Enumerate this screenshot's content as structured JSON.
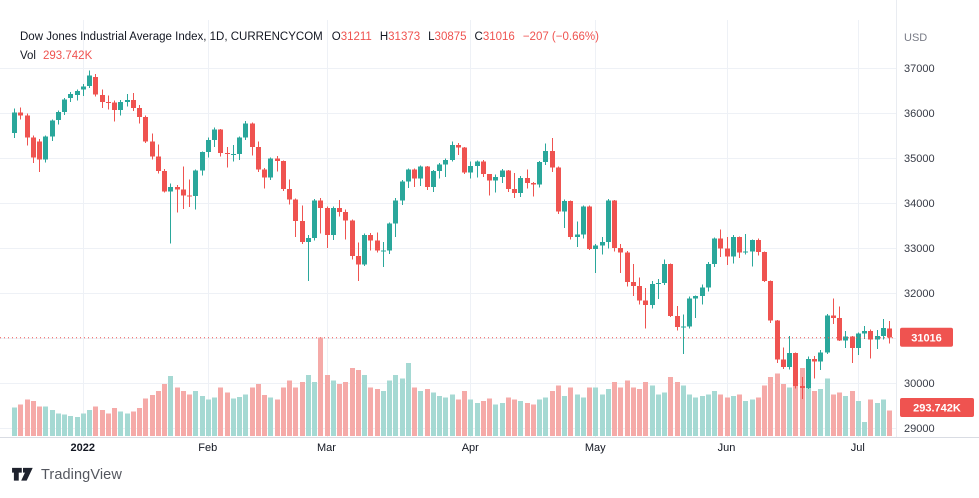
{
  "header": {
    "title": "Dow Jones Industrial Average Index, 1D, CURRENCYCOM",
    "ohlc": [
      {
        "label": "O",
        "value": "31211"
      },
      {
        "label": "H",
        "value": "31373"
      },
      {
        "label": "L",
        "value": "30875"
      },
      {
        "label": "C",
        "value": "31016"
      }
    ],
    "change": "−207 (−0.66%)",
    "vol_label": "Vol",
    "vol_value": "293.742K"
  },
  "axes": {
    "currency_label": "USD",
    "price_ticks_labeled": [
      37000,
      36000,
      35000,
      34000,
      33000,
      32000,
      30000,
      29000
    ],
    "price_gridlines": [
      37000,
      36000,
      35000,
      34000,
      33000,
      32000,
      31000,
      30000,
      29000
    ],
    "time_ticks": [
      {
        "label": "2022",
        "index": 11,
        "bold": true
      },
      {
        "label": "Feb",
        "index": 31,
        "bold": false
      },
      {
        "label": "Mar",
        "index": 50,
        "bold": false
      },
      {
        "label": "Apr",
        "index": 73,
        "bold": false
      },
      {
        "label": "May",
        "index": 93,
        "bold": false
      },
      {
        "label": "Jun",
        "index": 114,
        "bold": false
      },
      {
        "label": "Jul",
        "index": 135,
        "bold": false
      }
    ]
  },
  "price_line": {
    "value": 31016,
    "badge_label": "31016"
  },
  "volume_badge_label": "293.742K",
  "watermark": {
    "brand": "TradingView"
  },
  "colors": {
    "up": "#2aa79b",
    "down": "#ef5350",
    "vol_up": "#a5d9d3",
    "vol_down": "#f5aaa8",
    "grid": "#eef1f6",
    "axis_text": "#363a45",
    "muted_text": "#787b86",
    "title_text": "#131722",
    "badge_bg": "#ef5350",
    "badge_text": "#ffffff",
    "axis_line": "#d9dce3",
    "pane_border": "#e9ecf1"
  },
  "chart_data": {
    "type": "candlestick+volume",
    "title": "Dow Jones Industrial Average Index",
    "interval": "1D",
    "exchange": "CURRENCYCOM",
    "currency": "USD",
    "legend_last": {
      "open": 31211,
      "high": 31373,
      "low": 30875,
      "close": 31016,
      "change": -207,
      "change_pct": -0.66,
      "volume": "293.742K"
    },
    "price_axis_range_visible": [
      28800,
      38500
    ],
    "grid": true,
    "candle_format": [
      "open",
      "high",
      "low",
      "close",
      "volume_K"
    ],
    "candles": [
      [
        35560,
        36100,
        35450,
        36010,
        330
      ],
      [
        36010,
        36120,
        35860,
        35950,
        360
      ],
      [
        35950,
        35990,
        35280,
        35460,
        420
      ],
      [
        35460,
        35500,
        34890,
        35010,
        400
      ],
      [
        35370,
        35420,
        34690,
        34970,
        340
      ],
      [
        34970,
        35500,
        34900,
        35480,
        340
      ],
      [
        35480,
        35860,
        35380,
        35830,
        300
      ],
      [
        35840,
        36060,
        35740,
        36020,
        260
      ],
      [
        36020,
        36330,
        35960,
        36300,
        250
      ],
      [
        36330,
        36470,
        36240,
        36420,
        230
      ],
      [
        36400,
        36520,
        36280,
        36490,
        220
      ],
      [
        36520,
        36650,
        36380,
        36590,
        260
      ],
      [
        36600,
        36950,
        36560,
        36830,
        300
      ],
      [
        36800,
        36870,
        36370,
        36410,
        340
      ],
      [
        36400,
        36520,
        36110,
        36240,
        300
      ],
      [
        36240,
        36390,
        36080,
        36230,
        260
      ],
      [
        36230,
        36280,
        35810,
        36070,
        320
      ],
      [
        36070,
        36290,
        35940,
        36250,
        280
      ],
      [
        36250,
        36420,
        36140,
        36290,
        260
      ],
      [
        36290,
        36440,
        36040,
        36110,
        280
      ],
      [
        36110,
        36180,
        35770,
        35910,
        320
      ],
      [
        35910,
        35940,
        35330,
        35370,
        430
      ],
      [
        35370,
        35550,
        34970,
        35030,
        470
      ],
      [
        35030,
        35300,
        34660,
        34710,
        520
      ],
      [
        34710,
        34760,
        34230,
        34260,
        600
      ],
      [
        34260,
        34430,
        33100,
        34360,
        690
      ],
      [
        34360,
        34400,
        33790,
        34300,
        560
      ],
      [
        34300,
        34810,
        33870,
        34170,
        520
      ],
      [
        34170,
        34520,
        33910,
        34160,
        480
      ],
      [
        34160,
        34740,
        33860,
        34720,
        520
      ],
      [
        34720,
        35150,
        34610,
        35130,
        460
      ],
      [
        35130,
        35460,
        35010,
        35400,
        420
      ],
      [
        35400,
        35680,
        35240,
        35630,
        440
      ],
      [
        35630,
        35650,
        35030,
        35110,
        560
      ],
      [
        35110,
        35250,
        34790,
        35090,
        500
      ],
      [
        35090,
        35290,
        34920,
        35090,
        430
      ],
      [
        35090,
        35480,
        34960,
        35460,
        450
      ],
      [
        35460,
        35820,
        35400,
        35770,
        480
      ],
      [
        35770,
        35790,
        35060,
        35240,
        560
      ],
      [
        35240,
        35370,
        34690,
        34740,
        600
      ],
      [
        34740,
        34780,
        34320,
        34570,
        470
      ],
      [
        34570,
        35010,
        34510,
        34990,
        440
      ],
      [
        34990,
        35050,
        34700,
        34930,
        420
      ],
      [
        34930,
        34940,
        34270,
        34310,
        560
      ],
      [
        34310,
        34520,
        33970,
        34080,
        640
      ],
      [
        34080,
        34100,
        33250,
        33600,
        560
      ],
      [
        33600,
        33940,
        33090,
        33130,
        620
      ],
      [
        33130,
        33290,
        32270,
        33220,
        700
      ],
      [
        33220,
        34090,
        33170,
        34060,
        620
      ],
      [
        34060,
        34110,
        33320,
        33890,
        1130
      ],
      [
        33890,
        33920,
        33000,
        33290,
        700
      ],
      [
        33290,
        33920,
        33180,
        33890,
        640
      ],
      [
        33890,
        34070,
        33700,
        33800,
        600
      ],
      [
        33800,
        33860,
        33190,
        33610,
        620
      ],
      [
        33610,
        33630,
        32740,
        32820,
        780
      ],
      [
        32820,
        33120,
        32270,
        32630,
        760
      ],
      [
        32630,
        33320,
        32600,
        33290,
        700
      ],
      [
        33290,
        33330,
        32950,
        33170,
        560
      ],
      [
        33170,
        33350,
        32900,
        32940,
        540
      ],
      [
        32940,
        33130,
        32580,
        32950,
        520
      ],
      [
        32950,
        33570,
        32870,
        33540,
        640
      ],
      [
        33540,
        34110,
        33240,
        34060,
        700
      ],
      [
        34060,
        34510,
        33960,
        34480,
        660
      ],
      [
        34480,
        34770,
        34330,
        34750,
        840
      ],
      [
        34750,
        34770,
        34360,
        34550,
        560
      ],
      [
        34550,
        34830,
        34380,
        34810,
        520
      ],
      [
        34810,
        34820,
        34290,
        34360,
        540
      ],
      [
        34360,
        34730,
        34240,
        34710,
        500
      ],
      [
        34710,
        34890,
        34550,
        34860,
        460
      ],
      [
        34860,
        34990,
        34580,
        34960,
        440
      ],
      [
        34960,
        35370,
        34920,
        35290,
        480
      ],
      [
        35290,
        35330,
        35070,
        35230,
        420
      ],
      [
        35230,
        35240,
        34650,
        34680,
        520
      ],
      [
        34680,
        34920,
        34540,
        34820,
        420
      ],
      [
        34820,
        34950,
        34570,
        34920,
        380
      ],
      [
        34920,
        34960,
        34580,
        34640,
        400
      ],
      [
        34640,
        34650,
        34170,
        34500,
        430
      ],
      [
        34500,
        34630,
        34230,
        34580,
        360
      ],
      [
        34580,
        34760,
        34450,
        34720,
        380
      ],
      [
        34720,
        34730,
        34250,
        34310,
        440
      ],
      [
        34310,
        34670,
        34110,
        34220,
        420
      ],
      [
        34220,
        34600,
        34130,
        34560,
        400
      ],
      [
        34560,
        34750,
        34320,
        34450,
        380
      ],
      [
        34450,
        34470,
        34150,
        34410,
        360
      ],
      [
        34410,
        34930,
        34340,
        34910,
        420
      ],
      [
        34910,
        35320,
        34840,
        35160,
        440
      ],
      [
        35160,
        35450,
        34690,
        34790,
        520
      ],
      [
        34790,
        34810,
        33760,
        33810,
        580
      ],
      [
        33810,
        34080,
        33450,
        34050,
        460
      ],
      [
        34050,
        34060,
        33190,
        33240,
        560
      ],
      [
        33240,
        33590,
        33020,
        33300,
        480
      ],
      [
        33300,
        33950,
        33210,
        33920,
        440
      ],
      [
        33920,
        33940,
        32960,
        32980,
        560
      ],
      [
        32980,
        33090,
        32450,
        33060,
        560
      ],
      [
        33060,
        33240,
        32860,
        33130,
        480
      ],
      [
        33130,
        34090,
        32990,
        34060,
        540
      ],
      [
        34060,
        34070,
        32920,
        33000,
        620
      ],
      [
        33000,
        33090,
        32450,
        32900,
        560
      ],
      [
        32900,
        32930,
        32140,
        32250,
        640
      ],
      [
        32250,
        32650,
        31930,
        32160,
        560
      ],
      [
        32160,
        32340,
        31740,
        31830,
        540
      ],
      [
        31830,
        32110,
        31210,
        31730,
        620
      ],
      [
        31730,
        32270,
        31660,
        32200,
        580
      ],
      [
        32200,
        32310,
        31870,
        32220,
        480
      ],
      [
        32220,
        32740,
        32180,
        32650,
        500
      ],
      [
        32650,
        32660,
        31470,
        31490,
        680
      ],
      [
        31490,
        31710,
        31170,
        31250,
        620
      ],
      [
        31250,
        31520,
        30640,
        31260,
        580
      ],
      [
        31260,
        31920,
        31210,
        31880,
        480
      ],
      [
        31880,
        31940,
        31440,
        31930,
        440
      ],
      [
        31930,
        32190,
        31740,
        32120,
        460
      ],
      [
        32120,
        32690,
        32030,
        32640,
        480
      ],
      [
        32640,
        33230,
        32580,
        33210,
        520
      ],
      [
        33210,
        33410,
        32800,
        32990,
        480
      ],
      [
        32990,
        33250,
        32620,
        32810,
        440
      ],
      [
        32810,
        33290,
        32660,
        33250,
        460
      ],
      [
        33250,
        33260,
        32780,
        32900,
        480
      ],
      [
        32900,
        33310,
        32860,
        32920,
        400
      ],
      [
        32920,
        33190,
        32590,
        33180,
        420
      ],
      [
        33180,
        33210,
        32830,
        32910,
        440
      ],
      [
        32910,
        32920,
        32250,
        32270,
        580
      ],
      [
        32270,
        32280,
        31330,
        31390,
        680
      ],
      [
        31390,
        31400,
        30440,
        30520,
        720
      ],
      [
        30520,
        30790,
        30310,
        30360,
        600
      ],
      [
        30360,
        31050,
        30300,
        30670,
        560
      ],
      [
        30670,
        30680,
        29880,
        29930,
        720
      ],
      [
        29930,
        30130,
        29650,
        29890,
        780
      ],
      [
        29890,
        30590,
        29870,
        30530,
        560
      ],
      [
        30530,
        30600,
        30100,
        30480,
        520
      ],
      [
        30480,
        30730,
        30290,
        30680,
        540
      ],
      [
        30680,
        31530,
        30650,
        31500,
        660
      ],
      [
        31500,
        31880,
        31310,
        31440,
        480
      ],
      [
        31440,
        31700,
        30930,
        30950,
        500
      ],
      [
        30950,
        31160,
        30780,
        31030,
        460
      ],
      [
        31030,
        31050,
        30450,
        30780,
        520
      ],
      [
        30780,
        31120,
        30620,
        31100,
        400
      ],
      [
        31100,
        31270,
        30980,
        31160,
        160
      ],
      [
        31160,
        31190,
        30550,
        30970,
        420
      ],
      [
        30970,
        31180,
        30760,
        31040,
        380
      ],
      [
        31040,
        31420,
        30970,
        31223,
        420
      ],
      [
        31211,
        31373,
        30875,
        31016,
        293.742
      ]
    ]
  }
}
